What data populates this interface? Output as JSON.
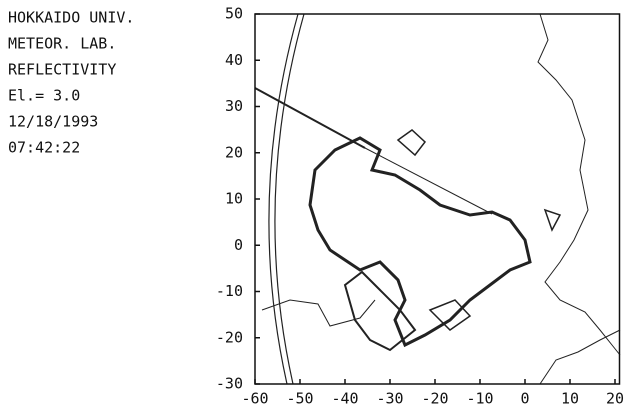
{
  "chart_data": {
    "type": "radar",
    "annotations": [
      "HOKKAIDO UNIV.",
      "METEOR. LAB.",
      "REFLECTIVITY",
      "El.= 3.0",
      "12/18/1993",
      "07:42:22"
    ],
    "xlim": [
      -60,
      21
    ],
    "ylim": [
      -30,
      50
    ],
    "xticks": [
      -60,
      -50,
      -40,
      -30,
      -20,
      -10,
      0,
      10,
      20
    ],
    "yticks": [
      -30,
      -20,
      -10,
      0,
      10,
      20,
      30,
      40,
      50
    ],
    "color": "#111"
  }
}
